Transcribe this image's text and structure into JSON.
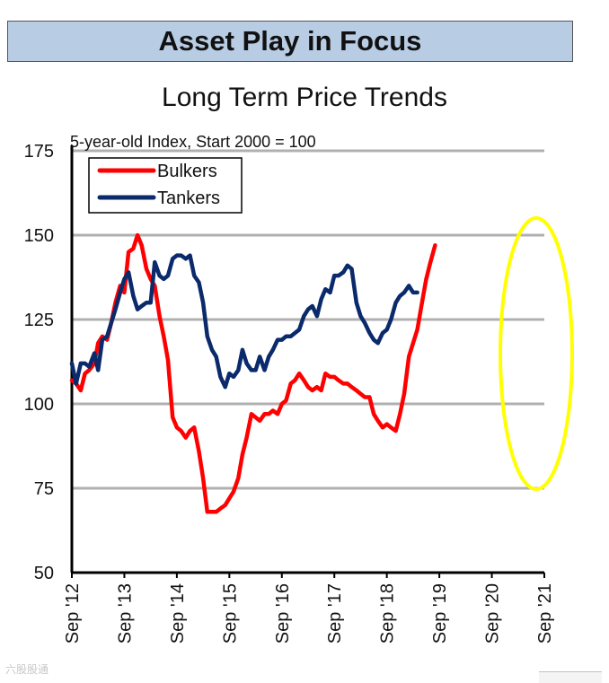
{
  "header": {
    "title": "Asset Play in Focus"
  },
  "chart_data": {
    "type": "line",
    "title": "Long Term Price Trends",
    "annotation": "5-year-old Index, Start 2000 = 100",
    "xlabel": "",
    "ylabel": "",
    "ylim": [
      50,
      175
    ],
    "yticks": [
      "50",
      "75",
      "100",
      "125",
      "150",
      "175"
    ],
    "xlim": [
      2012.67,
      2021.67
    ],
    "xticks": [
      {
        "x": 2012.67,
        "label": "Sep '12"
      },
      {
        "x": 2013.67,
        "label": "Sep '13"
      },
      {
        "x": 2014.67,
        "label": "Sep '14"
      },
      {
        "x": 2015.67,
        "label": "Sep '15"
      },
      {
        "x": 2016.67,
        "label": "Sep '16"
      },
      {
        "x": 2017.67,
        "label": "Sep '17"
      },
      {
        "x": 2018.67,
        "label": "Sep '18"
      },
      {
        "x": 2019.67,
        "label": "Sep '19"
      },
      {
        "x": 2020.67,
        "label": "Sep '20"
      },
      {
        "x": 2021.67,
        "label": "Sep '21"
      }
    ],
    "grid": true,
    "legend_position": "top-left",
    "series": [
      {
        "name": "Bulkers",
        "color": "#ff0000",
        "points": [
          [
            2012.67,
            107
          ],
          [
            2012.75,
            106
          ],
          [
            2012.84,
            104
          ],
          [
            2012.92,
            109
          ],
          [
            2013.0,
            110
          ],
          [
            2013.1,
            112
          ],
          [
            2013.17,
            118
          ],
          [
            2013.25,
            120
          ],
          [
            2013.34,
            119
          ],
          [
            2013.42,
            124
          ],
          [
            2013.5,
            130
          ],
          [
            2013.59,
            135
          ],
          [
            2013.67,
            133
          ],
          [
            2013.75,
            145
          ],
          [
            2013.84,
            146
          ],
          [
            2013.92,
            150
          ],
          [
            2014.0,
            147
          ],
          [
            2014.09,
            140
          ],
          [
            2014.17,
            137
          ],
          [
            2014.25,
            135
          ],
          [
            2014.34,
            126
          ],
          [
            2014.42,
            120
          ],
          [
            2014.5,
            113
          ],
          [
            2014.59,
            96
          ],
          [
            2014.67,
            93
          ],
          [
            2014.75,
            92
          ],
          [
            2014.84,
            90
          ],
          [
            2014.92,
            92
          ],
          [
            2015.0,
            93
          ],
          [
            2015.09,
            86
          ],
          [
            2015.17,
            78
          ],
          [
            2015.25,
            68
          ],
          [
            2015.34,
            68
          ],
          [
            2015.42,
            68
          ],
          [
            2015.5,
            69
          ],
          [
            2015.59,
            70
          ],
          [
            2015.67,
            72
          ],
          [
            2015.75,
            74
          ],
          [
            2015.84,
            78
          ],
          [
            2015.92,
            85
          ],
          [
            2016.0,
            90
          ],
          [
            2016.09,
            97
          ],
          [
            2016.17,
            96
          ],
          [
            2016.25,
            95
          ],
          [
            2016.34,
            97
          ],
          [
            2016.42,
            97
          ],
          [
            2016.5,
            98
          ],
          [
            2016.59,
            97
          ],
          [
            2016.67,
            100
          ],
          [
            2016.75,
            101
          ],
          [
            2016.84,
            106
          ],
          [
            2016.92,
            107
          ],
          [
            2017.0,
            109
          ],
          [
            2017.09,
            107
          ],
          [
            2017.17,
            105
          ],
          [
            2017.25,
            104
          ],
          [
            2017.34,
            105
          ],
          [
            2017.42,
            104
          ],
          [
            2017.5,
            109
          ],
          [
            2017.59,
            108
          ],
          [
            2017.67,
            108
          ],
          [
            2017.75,
            107
          ],
          [
            2017.84,
            106
          ],
          [
            2017.92,
            106
          ],
          [
            2018.0,
            105
          ],
          [
            2018.09,
            104
          ],
          [
            2018.17,
            103
          ],
          [
            2018.25,
            102
          ],
          [
            2018.34,
            102
          ],
          [
            2018.42,
            97
          ],
          [
            2018.5,
            95
          ],
          [
            2018.59,
            93
          ],
          [
            2018.67,
            94
          ],
          [
            2018.75,
            93
          ],
          [
            2018.84,
            92
          ],
          [
            2018.92,
            97
          ],
          [
            2019.0,
            103
          ],
          [
            2019.09,
            114
          ],
          [
            2019.17,
            118
          ],
          [
            2019.25,
            122
          ],
          [
            2019.34,
            130
          ],
          [
            2019.42,
            137
          ],
          [
            2019.5,
            142
          ],
          [
            2019.59,
            147
          ]
        ]
      },
      {
        "name": "Tankers",
        "color": "#0a2a6b",
        "points": [
          [
            2012.67,
            112
          ],
          [
            2012.75,
            106
          ],
          [
            2012.84,
            112
          ],
          [
            2012.92,
            112
          ],
          [
            2013.0,
            111
          ],
          [
            2013.1,
            115
          ],
          [
            2013.17,
            110
          ],
          [
            2013.25,
            119
          ],
          [
            2013.34,
            120
          ],
          [
            2013.42,
            124
          ],
          [
            2013.5,
            128
          ],
          [
            2013.59,
            133
          ],
          [
            2013.67,
            137
          ],
          [
            2013.75,
            139
          ],
          [
            2013.84,
            132
          ],
          [
            2013.92,
            128
          ],
          [
            2014.0,
            129
          ],
          [
            2014.09,
            130
          ],
          [
            2014.17,
            130
          ],
          [
            2014.25,
            142
          ],
          [
            2014.34,
            138
          ],
          [
            2014.42,
            137
          ],
          [
            2014.5,
            138
          ],
          [
            2014.59,
            143
          ],
          [
            2014.67,
            144
          ],
          [
            2014.75,
            144
          ],
          [
            2014.84,
            143
          ],
          [
            2014.92,
            144
          ],
          [
            2015.0,
            138
          ],
          [
            2015.09,
            136
          ],
          [
            2015.17,
            130
          ],
          [
            2015.25,
            120
          ],
          [
            2015.34,
            116
          ],
          [
            2015.42,
            114
          ],
          [
            2015.5,
            108
          ],
          [
            2015.59,
            105
          ],
          [
            2015.67,
            109
          ],
          [
            2015.75,
            108
          ],
          [
            2015.84,
            110
          ],
          [
            2015.92,
            116
          ],
          [
            2016.0,
            112
          ],
          [
            2016.09,
            110
          ],
          [
            2016.17,
            110
          ],
          [
            2016.25,
            114
          ],
          [
            2016.34,
            110
          ],
          [
            2016.42,
            114
          ],
          [
            2016.5,
            116
          ],
          [
            2016.59,
            119
          ],
          [
            2016.67,
            119
          ],
          [
            2016.75,
            120
          ],
          [
            2016.84,
            120
          ],
          [
            2016.92,
            121
          ],
          [
            2017.0,
            122
          ],
          [
            2017.09,
            126
          ],
          [
            2017.17,
            128
          ],
          [
            2017.25,
            129
          ],
          [
            2017.34,
            126
          ],
          [
            2017.42,
            131
          ],
          [
            2017.5,
            134
          ],
          [
            2017.59,
            133
          ],
          [
            2017.67,
            138
          ],
          [
            2017.75,
            138
          ],
          [
            2017.84,
            139
          ],
          [
            2017.92,
            141
          ],
          [
            2018.0,
            140
          ],
          [
            2018.09,
            130
          ],
          [
            2018.17,
            126
          ],
          [
            2018.25,
            124
          ],
          [
            2018.34,
            121
          ],
          [
            2018.42,
            119
          ],
          [
            2018.5,
            118
          ],
          [
            2018.59,
            121
          ],
          [
            2018.67,
            122
          ],
          [
            2018.75,
            125
          ],
          [
            2018.84,
            130
          ],
          [
            2018.92,
            132
          ],
          [
            2019.0,
            133
          ],
          [
            2019.09,
            135
          ],
          [
            2019.17,
            133
          ],
          [
            2019.25,
            133
          ]
        ]
      }
    ],
    "highlight": {
      "type": "ellipse",
      "color": "#ffff00",
      "label": ""
    }
  },
  "watermark": "六股股通"
}
